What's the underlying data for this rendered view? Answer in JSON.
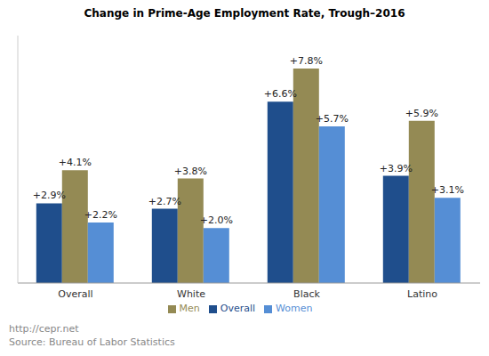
{
  "chart_data": {
    "type": "bar",
    "title": "Change in Prime-Age Employment Rate, Trough–2016",
    "categories": [
      "Overall",
      "White",
      "Black",
      "Latino"
    ],
    "series": [
      {
        "name": "Overall",
        "color": "#1f4e8c",
        "values": [
          2.9,
          2.7,
          6.6,
          3.9
        ],
        "value_labels": [
          "+2.9%",
          "+2.7%",
          "+6.6%",
          "+3.9%"
        ]
      },
      {
        "name": "Men",
        "color": "#948a54",
        "values": [
          4.1,
          3.8,
          7.8,
          5.9
        ],
        "value_labels": [
          "+4.1%",
          "+3.8%",
          "+7.8%",
          "+5.9%"
        ]
      },
      {
        "name": "Women",
        "color": "#558ed5",
        "values": [
          2.2,
          2.0,
          5.7,
          3.1
        ],
        "value_labels": [
          "+2.2%",
          "+2.0%",
          "+5.7%",
          "+3.1%"
        ]
      }
    ],
    "ylim": [
      0,
      9
    ],
    "tick_labels": "x",
    "data_labels": true,
    "grid": false,
    "legend": "bottom",
    "annotations": [
      "http://cepr.net",
      "Source: Bureau of Labor Statistics"
    ]
  }
}
